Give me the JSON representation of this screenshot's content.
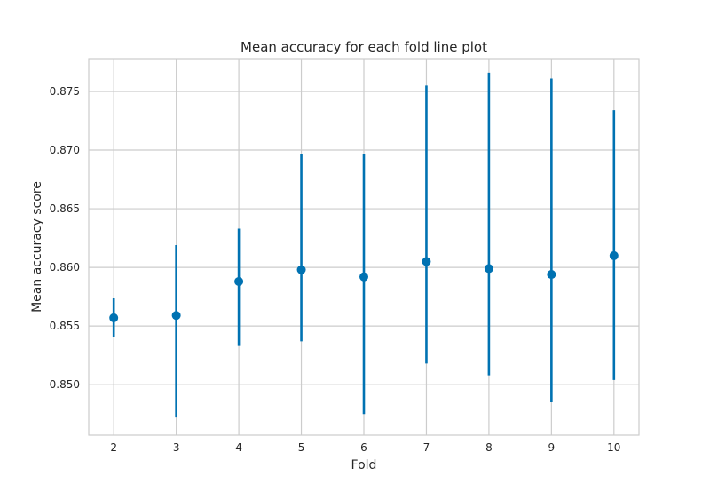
{
  "chart_data": {
    "type": "scatter",
    "title": "Mean accuracy for each fold line plot",
    "xlabel": "Fold",
    "ylabel": "Mean accuracy score",
    "xlim": [
      1.6,
      10.4
    ],
    "ylim": [
      0.8457,
      0.8778
    ],
    "x_ticks": [
      2,
      3,
      4,
      5,
      6,
      7,
      8,
      9,
      10
    ],
    "y_ticks": [
      0.85,
      0.855,
      0.86,
      0.865,
      0.87,
      0.875
    ],
    "y_tick_labels": [
      "0.850",
      "0.855",
      "0.860",
      "0.865",
      "0.870",
      "0.875"
    ],
    "grid": true,
    "series": [
      {
        "color": "#0072b2",
        "x": [
          2,
          3,
          4,
          5,
          6,
          7,
          8,
          9,
          10
        ],
        "y": [
          0.8557,
          0.8559,
          0.8588,
          0.8598,
          0.8592,
          0.8605,
          0.8599,
          0.8594,
          0.861
        ],
        "y_err_lower": [
          0.8541,
          0.8472,
          0.8533,
          0.8537,
          0.8475,
          0.8518,
          0.8508,
          0.8485,
          0.8504
        ],
        "y_err_upper": [
          0.8574,
          0.8619,
          0.8633,
          0.8697,
          0.8697,
          0.8755,
          0.8766,
          0.8761,
          0.8734
        ]
      }
    ]
  }
}
